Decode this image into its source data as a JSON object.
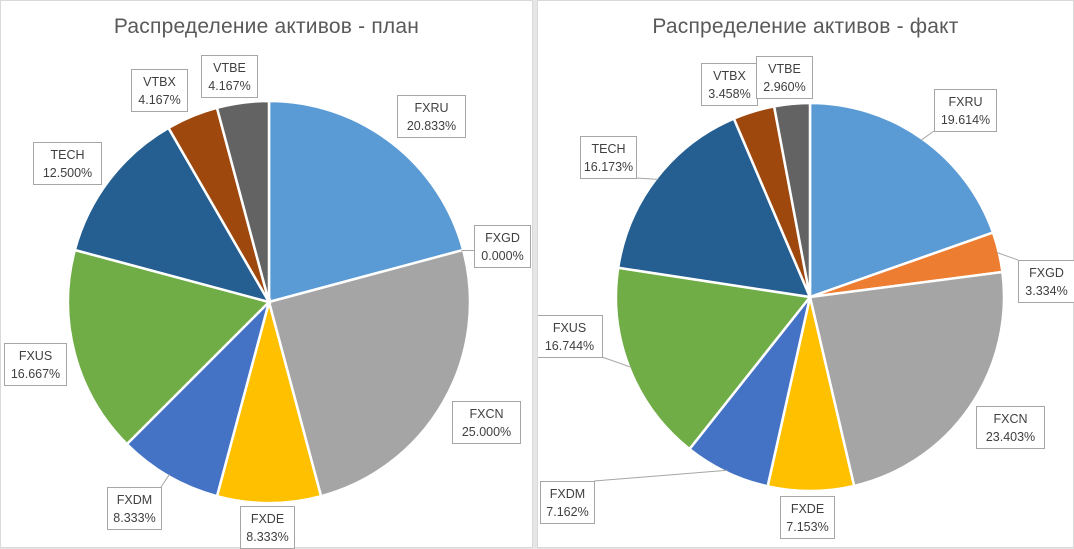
{
  "chart_data": [
    {
      "type": "pie",
      "title": "Распределение активов - план",
      "categories": [
        "FXRU",
        "FXGD",
        "FXCN",
        "FXDE",
        "FXDM",
        "FXUS",
        "TECH",
        "VTBX",
        "VTBE"
      ],
      "values": [
        20.833,
        0.0,
        25.0,
        8.333,
        8.333,
        16.667,
        12.5,
        4.167,
        4.167
      ],
      "value_labels": [
        "20.833%",
        "0.000%",
        "25.000%",
        "8.333%",
        "8.333%",
        "16.667%",
        "12.500%",
        "4.167%",
        "4.167%"
      ],
      "colors": [
        "#5B9BD5",
        "#ED7D31",
        "#A5A5A5",
        "#FFC000",
        "#4472C4",
        "#70AD47",
        "#255E91",
        "#9E480E",
        "#636363"
      ],
      "start_angle_deg": 0,
      "direction": "clockwise",
      "legend": "none"
    },
    {
      "type": "pie",
      "title": "Распределение активов - факт",
      "categories": [
        "FXRU",
        "FXGD",
        "FXCN",
        "FXDE",
        "FXDM",
        "FXUS",
        "TECH",
        "VTBX",
        "VTBE"
      ],
      "values": [
        19.614,
        3.334,
        23.403,
        7.153,
        7.162,
        16.744,
        16.173,
        3.458,
        2.96
      ],
      "value_labels": [
        "19.614%",
        "3.334%",
        "23.403%",
        "7.153%",
        "7.162%",
        "16.744%",
        "16.173%",
        "3.458%",
        "2.960%"
      ],
      "colors": [
        "#5B9BD5",
        "#ED7D31",
        "#A5A5A5",
        "#FFC000",
        "#4472C4",
        "#70AD47",
        "#255E91",
        "#9E480E",
        "#636363"
      ],
      "start_angle_deg": 0,
      "direction": "clockwise",
      "legend": "none"
    }
  ]
}
